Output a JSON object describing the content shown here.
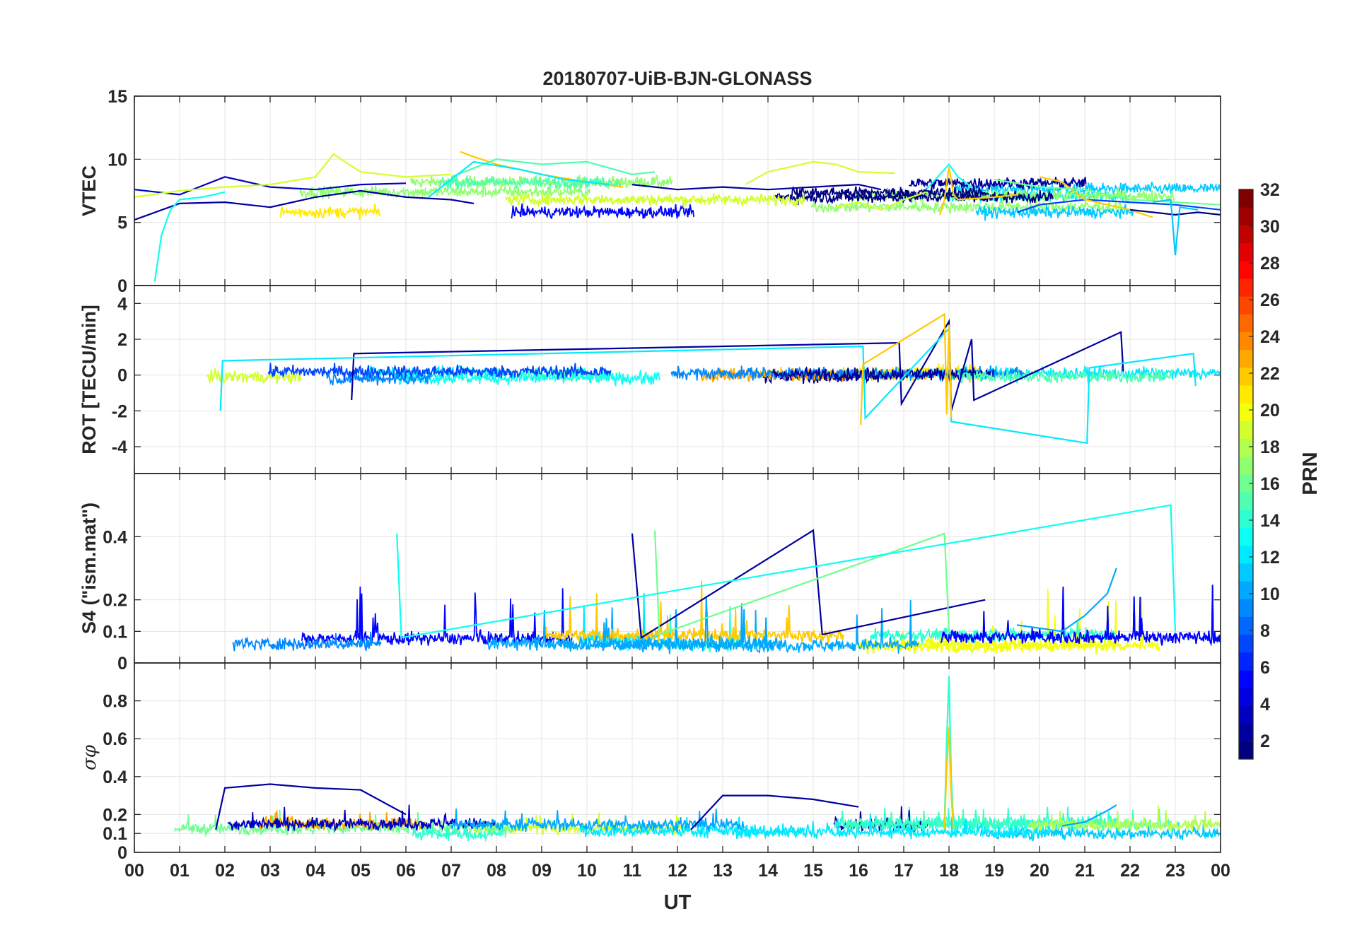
{
  "chart_data": {
    "type": "line",
    "title": "20180707-UiB-BJN-GLONASS",
    "xlabel": "UT",
    "x_ticks": [
      "00",
      "01",
      "02",
      "03",
      "04",
      "05",
      "06",
      "07",
      "08",
      "09",
      "10",
      "11",
      "12",
      "13",
      "14",
      "15",
      "16",
      "17",
      "18",
      "19",
      "20",
      "21",
      "22",
      "23",
      "00"
    ],
    "xlim": [
      0,
      24
    ],
    "grid": true,
    "colorbar": {
      "label": "PRN",
      "range": [
        1,
        32
      ],
      "ticks": [
        "2",
        "4",
        "6",
        "8",
        "10",
        "12",
        "14",
        "16",
        "18",
        "20",
        "22",
        "24",
        "26",
        "28",
        "30",
        "32"
      ],
      "colormap": "jet",
      "colors": [
        "#00008f",
        "#0000ff",
        "#0080ff",
        "#00ffff",
        "#80ff80",
        "#ffff00",
        "#ff8000",
        "#ff0000",
        "#800000"
      ]
    },
    "panels": [
      {
        "ylabel": "VTEC",
        "ylim": [
          0,
          15
        ],
        "y_ticks": [
          "0",
          "5",
          "10",
          "15"
        ],
        "series": [
          {
            "prn": 2,
            "x": [
              0.0,
              1.0,
              2.0,
              3.0,
              4.0,
              5.0,
              6.0,
              7.0,
              7.5
            ],
            "y": [
              5.2,
              6.5,
              6.6,
              6.2,
              7.0,
              7.5,
              7.0,
              6.8,
              6.5
            ]
          },
          {
            "prn": 3,
            "x": [
              0.0,
              1.0,
              2.0,
              3.0,
              4.0,
              5.0,
              6.0
            ],
            "y": [
              7.6,
              7.2,
              8.6,
              7.8,
              7.6,
              8.0,
              8.1
            ]
          },
          {
            "prn": 13,
            "x": [
              0.45,
              0.6,
              0.8,
              1.0,
              1.5,
              2.0
            ],
            "y": [
              0.3,
              4.0,
              6.0,
              6.8,
              7.0,
              7.4
            ]
          },
          {
            "prn": 19,
            "x": [
              0.0,
              1.0,
              2.0,
              3.0,
              4.0,
              4.4,
              5.0,
              6.0,
              7.0
            ],
            "y": [
              7.0,
              7.5,
              7.8,
              8.0,
              8.6,
              10.4,
              9.0,
              8.6,
              8.8
            ]
          },
          {
            "prn": 22,
            "x": [
              7.2,
              7.5,
              8.0,
              9.0,
              10.0,
              10.8
            ],
            "y": [
              10.6,
              10.2,
              9.6,
              8.8,
              8.2,
              7.8
            ]
          },
          {
            "prn": 15,
            "x": [
              7.0,
              8.0,
              9.0,
              10.0,
              11.0,
              11.5
            ],
            "y": [
              8.6,
              10.0,
              9.6,
              9.8,
              8.8,
              9.0
            ]
          },
          {
            "prn": 12,
            "x": [
              6.5,
              7.5,
              8.5,
              9.5,
              10.5
            ],
            "y": [
              7.0,
              9.8,
              9.2,
              8.4,
              8.0
            ]
          },
          {
            "prn": 2,
            "x": [
              11.0,
              12.0,
              13.0,
              14.0,
              15.0,
              16.0,
              16.5
            ],
            "y": [
              8.0,
              7.6,
              7.8,
              7.6,
              7.8,
              8.0,
              7.6
            ]
          },
          {
            "prn": 19,
            "x": [
              13.5,
              14.0,
              15.0,
              15.5,
              16.0,
              16.8
            ],
            "y": [
              8.0,
              9.0,
              9.8,
              9.6,
              9.0,
              8.9
            ]
          },
          {
            "prn": 13,
            "x": [
              17.5,
              17.8,
              18.0,
              18.2,
              18.5
            ],
            "y": [
              7.6,
              8.8,
              9.6,
              8.6,
              7.8
            ]
          },
          {
            "prn": 22,
            "x": [
              17.8,
              17.9,
              18.0,
              18.1,
              18.2,
              19.0,
              19.5
            ],
            "y": [
              5.6,
              6.8,
              9.4,
              7.2,
              6.8,
              7.0,
              7.2
            ]
          },
          {
            "prn": 19,
            "x": [
              15.5,
              16.0,
              16.5,
              17.0,
              17.5
            ],
            "y": [
              6.2,
              6.6,
              6.0,
              6.8,
              7.4
            ]
          },
          {
            "prn": 7,
            "x": [
              19.5,
              20.0,
              21.0,
              22.0,
              23.0,
              24.0
            ],
            "y": [
              5.8,
              6.4,
              6.8,
              6.6,
              6.4,
              6.0
            ]
          },
          {
            "prn": 22,
            "x": [
              20.0,
              20.5,
              21.0,
              22.0,
              22.5
            ],
            "y": [
              8.6,
              8.2,
              6.8,
              6.0,
              5.4
            ]
          },
          {
            "prn": 16,
            "x": [
              19.0,
              20.0,
              21.0,
              22.0,
              23.0,
              24.0
            ],
            "y": [
              8.4,
              7.8,
              7.6,
              6.8,
              6.6,
              6.4
            ]
          },
          {
            "prn": 1,
            "x": [
              22.0,
              23.0,
              23.5,
              24.0
            ],
            "y": [
              6.0,
              5.6,
              5.8,
              5.6
            ]
          },
          {
            "prn": 11,
            "x": [
              22.5,
              22.9,
              23.0,
              23.1,
              23.5
            ],
            "y": [
              6.6,
              6.8,
              2.4,
              6.2,
              6.0
            ]
          }
        ]
      },
      {
        "ylabel": "ROT [TECU/min]",
        "ylim": [
          -5.5,
          5
        ],
        "y_ticks": [
          "-4",
          "-2",
          "0",
          "2",
          "4"
        ],
        "series": [
          {
            "prn": 2,
            "x": [
              4.8,
              4.85,
              16.9,
              16.95,
              18.0,
              18.05,
              18.5,
              18.55,
              21.8,
              21.85
            ],
            "y": [
              -1.4,
              1.2,
              1.8,
              -1.6,
              3.0,
              -2.0,
              2.0,
              -1.4,
              2.4,
              0.2
            ]
          },
          {
            "prn": 12,
            "x": [
              1.9,
              1.95,
              16.1,
              16.15,
              18.0,
              18.05,
              21.05,
              21.1,
              23.4,
              23.45
            ],
            "y": [
              -2.0,
              0.8,
              1.6,
              -2.4,
              2.6,
              -2.6,
              -3.8,
              0.4,
              1.2,
              -0.6
            ]
          },
          {
            "prn": 22,
            "x": [
              16.05,
              16.1,
              17.9,
              17.95,
              18.0,
              18.05
            ],
            "y": [
              -2.8,
              0.6,
              3.4,
              -2.2,
              2.8,
              -2.4
            ]
          }
        ]
      },
      {
        "ylabel": "S4 (\"ism.mat\")",
        "ylim": [
          0,
          0.6
        ],
        "y_ticks": [
          "0",
          "0.1",
          "0.2",
          "0.4"
        ],
        "series": [
          {
            "prn": 2,
            "x": [
              11.0,
              11.2,
              15.0,
              15.2,
              18.8
            ],
            "y": [
              0.41,
              0.08,
              0.42,
              0.09,
              0.2
            ]
          },
          {
            "prn": 16,
            "x": [
              11.5,
              11.6,
              17.9,
              18.0
            ],
            "y": [
              0.42,
              0.09,
              0.41,
              0.1
            ]
          },
          {
            "prn": 13,
            "x": [
              5.8,
              5.9,
              22.9,
              23.0
            ],
            "y": [
              0.41,
              0.08,
              0.5,
              0.1
            ]
          },
          {
            "prn": 10,
            "x": [
              19.5,
              20.5,
              21.0,
              21.5,
              21.7
            ],
            "y": [
              0.12,
              0.1,
              0.15,
              0.22,
              0.3
            ]
          }
        ]
      },
      {
        "ylabel": "σφ",
        "ylim": [
          0,
          1
        ],
        "y_ticks": [
          "0",
          "0.1",
          "0.2",
          "0.4",
          "0.6",
          "0.8"
        ],
        "series": [
          {
            "prn": 14,
            "x": [
              17.9,
              17.95,
              18.0,
              18.05,
              18.1
            ],
            "y": [
              0.15,
              0.6,
              0.93,
              0.4,
              0.15
            ]
          },
          {
            "prn": 22,
            "x": [
              17.9,
              17.95,
              18.0,
              18.05,
              18.1
            ],
            "y": [
              0.12,
              0.45,
              0.66,
              0.3,
              0.12
            ]
          },
          {
            "prn": 2,
            "x": [
              1.8,
              2.0,
              3.0,
              4.0,
              5.0,
              6.0
            ],
            "y": [
              0.12,
              0.34,
              0.36,
              0.34,
              0.33,
              0.2
            ]
          },
          {
            "prn": 2,
            "x": [
              12.3,
              13.0,
              14.0,
              15.0,
              16.0
            ],
            "y": [
              0.12,
              0.3,
              0.3,
              0.28,
              0.24
            ]
          },
          {
            "prn": 10,
            "x": [
              20.5,
              21.0,
              21.5,
              21.7
            ],
            "y": [
              0.14,
              0.16,
              0.22,
              0.25
            ]
          }
        ]
      }
    ]
  }
}
